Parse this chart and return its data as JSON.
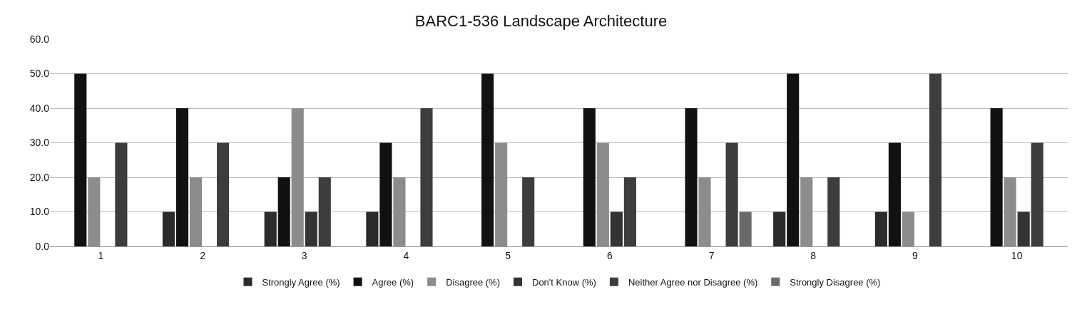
{
  "chart_data": {
    "type": "bar",
    "title": "BARC1-536 Landscape Architecture",
    "categories": [
      "1",
      "2",
      "3",
      "4",
      "5",
      "6",
      "7",
      "8",
      "9",
      "10"
    ],
    "series": [
      {
        "name": "Strongly Agree (%)",
        "color": "#2b2b2b",
        "values": [
          0,
          10,
          10,
          10,
          0,
          0,
          0,
          10,
          10,
          0
        ]
      },
      {
        "name": "Agree (%)",
        "color": "#111111",
        "values": [
          50,
          40,
          20,
          30,
          50,
          40,
          40,
          50,
          30,
          40
        ]
      },
      {
        "name": "Disagree (%)",
        "color": "#8c8c8c",
        "values": [
          20,
          20,
          40,
          20,
          30,
          30,
          20,
          20,
          10,
          20
        ]
      },
      {
        "name": "Don't Know (%)",
        "color": "#333333",
        "values": [
          0,
          0,
          10,
          0,
          0,
          10,
          0,
          0,
          0,
          10
        ]
      },
      {
        "name": "Neither Agree nor Disagree (%)",
        "color": "#3d3d3d",
        "values": [
          30,
          30,
          20,
          40,
          20,
          20,
          30,
          20,
          50,
          30
        ]
      },
      {
        "name": "Strongly Disagree (%)",
        "color": "#6a6a6a",
        "values": [
          0,
          0,
          0,
          0,
          0,
          0,
          10,
          0,
          0,
          0
        ]
      }
    ],
    "ylim": [
      0,
      60
    ],
    "yticks": [
      {
        "value": 0,
        "label": "0.0"
      },
      {
        "value": 10,
        "label": "10.0"
      },
      {
        "value": 20,
        "label": "20.0"
      },
      {
        "value": 30,
        "label": "30.0"
      },
      {
        "value": 40,
        "label": "40.0"
      },
      {
        "value": 50,
        "label": "50.0"
      },
      {
        "value": 60,
        "label": "60.0"
      }
    ],
    "grid": "y",
    "legend": "bottom"
  }
}
